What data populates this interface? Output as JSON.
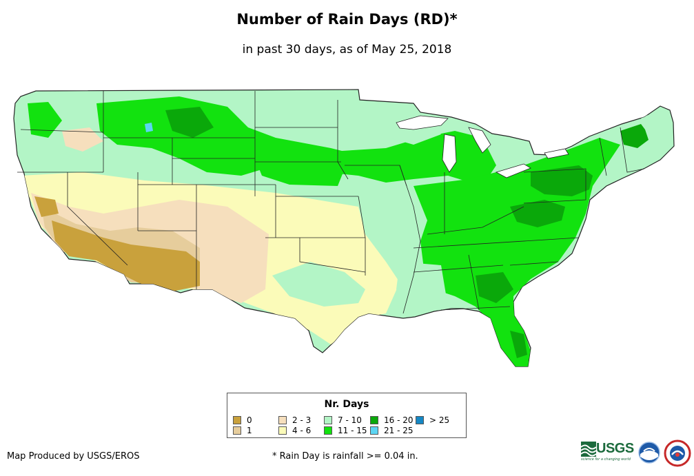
{
  "title": "Number of Rain Days (RD)*",
  "subtitle": "in past 30 days, as of May 25, 2018",
  "legend": {
    "title": "Nr. Days",
    "items": [
      {
        "label": "0",
        "color": "#c9a13c"
      },
      {
        "label": "1",
        "color": "#e6cd9c"
      },
      {
        "label": "2 - 3",
        "color": "#f6dfbd"
      },
      {
        "label": "4 - 6",
        "color": "#fbfbb9"
      },
      {
        "label": "7 - 10",
        "color": "#b3f5c6"
      },
      {
        "label": "11 - 15",
        "color": "#12e20f"
      },
      {
        "label": "16 - 20",
        "color": "#0aa80a"
      },
      {
        "label": "21 - 25",
        "color": "#5cd5f3"
      },
      {
        "label": "> 25",
        "color": "#1587c4"
      }
    ]
  },
  "credit": "Map Produced by USGS/EROS",
  "footnote": "* Rain Day is rainfall >= 0.04 in.",
  "logos": {
    "usgs": "USGS",
    "usgs_tagline": "science for a changing world",
    "noaa": "NOAA"
  }
}
